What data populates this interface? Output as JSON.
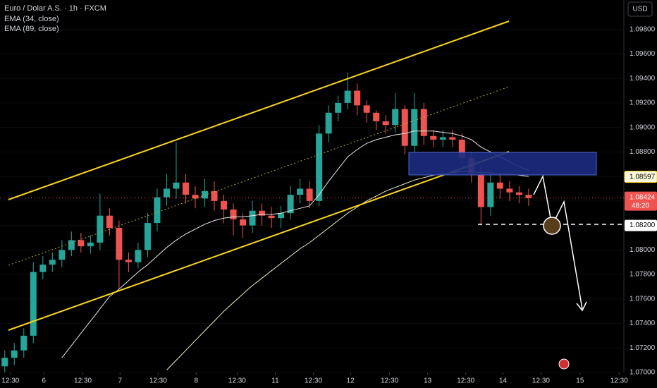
{
  "chart_data": {
    "type": "candlestick",
    "title": "Euro / Dolar A.S. · 1h · FXCM",
    "currency": "USD",
    "up_color": "#26a69a",
    "down_color": "#ef5350",
    "open": [
      1.0705,
      1.0712,
      1.0718,
      1.073,
      1.0782,
      1.0788,
      1.0792,
      1.08,
      1.0808,
      1.0803,
      1.0806,
      1.0828,
      1.0818,
      1.0792,
      1.079,
      1.08,
      1.0822,
      1.0843,
      1.085,
      1.0855,
      1.0845,
      1.0842,
      1.0848,
      1.084,
      1.0833,
      1.0825,
      1.082,
      1.0832,
      1.0828,
      1.0826,
      1.083,
      1.0845,
      1.085,
      1.084,
      1.0895,
      1.0912,
      1.092,
      1.093,
      1.0918,
      1.0912,
      1.0905,
      1.0902,
      1.0915,
      1.0885,
      1.0915,
      1.0893,
      1.089,
      1.0892,
      1.089,
      1.0875,
      1.0862,
      1.0835,
      1.0855,
      1.085,
      1.0847,
      1.0845
    ],
    "high": [
      1.0718,
      1.0724,
      1.0736,
      1.079,
      1.0795,
      1.0798,
      1.0808,
      1.0815,
      1.0814,
      1.0812,
      1.0846,
      1.0834,
      1.0824,
      1.0798,
      1.0806,
      1.083,
      1.085,
      1.0862,
      1.0888,
      1.0862,
      1.0852,
      1.0858,
      1.0856,
      1.0845,
      1.0838,
      1.083,
      1.084,
      1.0838,
      1.0835,
      1.0836,
      1.0852,
      1.0858,
      1.0856,
      1.0902,
      1.0918,
      1.0926,
      1.0945,
      1.0936,
      1.0922,
      1.0914,
      1.091,
      1.0928,
      1.0918,
      1.0928,
      1.092,
      1.0898,
      1.0898,
      1.0898,
      1.0895,
      1.088,
      1.0868,
      1.0864,
      1.0862,
      1.0856,
      1.0852,
      1.085
    ],
    "low": [
      1.07,
      1.0706,
      1.0712,
      1.0724,
      1.0776,
      1.0782,
      1.0786,
      1.0795,
      1.0798,
      1.0797,
      1.08,
      1.0812,
      1.0768,
      1.0782,
      1.0785,
      1.0794,
      1.0815,
      1.0836,
      1.0842,
      1.0838,
      1.0834,
      1.0835,
      1.0832,
      1.0822,
      1.0812,
      1.081,
      1.0814,
      1.082,
      1.0818,
      1.0818,
      1.0825,
      1.0838,
      1.0834,
      1.0836,
      1.0888,
      1.0905,
      1.0915,
      1.091,
      1.0904,
      1.0898,
      1.0895,
      1.0896,
      1.0878,
      1.088,
      1.0886,
      1.0884,
      1.0884,
      1.0884,
      1.0868,
      1.0855,
      1.082,
      1.0828,
      1.0842,
      1.084,
      1.0838,
      1.0836
    ],
    "close": [
      1.0712,
      1.0718,
      1.073,
      1.0782,
      1.0788,
      1.0792,
      1.08,
      1.0808,
      1.0803,
      1.0806,
      1.0828,
      1.0818,
      1.0792,
      1.079,
      1.08,
      1.0822,
      1.0843,
      1.085,
      1.0855,
      1.0845,
      1.0842,
      1.0848,
      1.084,
      1.0833,
      1.0825,
      1.082,
      1.0832,
      1.0828,
      1.0826,
      1.083,
      1.0845,
      1.085,
      1.084,
      1.0895,
      1.0912,
      1.092,
      1.093,
      1.0918,
      1.0912,
      1.0905,
      1.0902,
      1.0915,
      1.0885,
      1.0915,
      1.0893,
      1.089,
      1.0892,
      1.089,
      1.0875,
      1.0862,
      1.0835,
      1.0855,
      1.085,
      1.0847,
      1.0845,
      1.08424
    ],
    "series": [
      {
        "name": "EMA (34, close)",
        "color": "#e8e8e8",
        "values": [
          null,
          null,
          null,
          null,
          null,
          null,
          1.0712,
          1.0722,
          1.0732,
          1.0742,
          1.0752,
          1.0762,
          1.0768,
          1.0775,
          1.0782,
          1.0788,
          1.0795,
          1.0802,
          1.0808,
          1.0813,
          1.0817,
          1.0821,
          1.0824,
          1.0826,
          1.0827,
          1.0827,
          1.0828,
          1.0829,
          1.0829,
          1.083,
          1.0832,
          1.0834,
          1.0836,
          1.0845,
          1.0856,
          1.0866,
          1.0876,
          1.0882,
          1.0887,
          1.089,
          1.0892,
          1.0894,
          1.0895,
          1.0897,
          1.0897,
          1.0897,
          1.0896,
          1.0895,
          1.0893,
          1.089,
          1.0884,
          1.088,
          1.0876,
          1.0872,
          1.0868,
          1.0865
        ]
      },
      {
        "name": "EMA (89, close)",
        "color": "#f3eccb",
        "values": [
          null,
          null,
          null,
          null,
          null,
          null,
          null,
          null,
          null,
          null,
          null,
          null,
          null,
          null,
          null,
          null,
          null,
          1.0702,
          1.071,
          1.0718,
          1.0726,
          1.0734,
          1.0742,
          1.075,
          1.0757,
          1.0764,
          1.0771,
          1.0777,
          1.0783,
          1.0789,
          1.0795,
          1.0801,
          1.0806,
          1.0812,
          1.0818,
          1.0824,
          1.083,
          1.0835,
          1.084,
          1.0844,
          1.0848,
          1.0851,
          1.0854,
          1.0857,
          1.0859,
          1.0861,
          1.0862,
          1.0863,
          1.0864,
          1.0864,
          1.0863,
          1.0863,
          1.0862,
          1.0862,
          1.0861,
          1.086
        ]
      }
    ],
    "ylim": [
      1.07,
      1.1004
    ],
    "yticks": [
      {
        "value": 1.07,
        "label": "1.07000"
      },
      {
        "value": 1.072,
        "label": "1.07200"
      },
      {
        "value": 1.074,
        "label": "1.07400"
      },
      {
        "value": 1.076,
        "label": "1.07600"
      },
      {
        "value": 1.078,
        "label": "1.07800"
      },
      {
        "value": 1.08,
        "label": "1.08000"
      },
      {
        "value": 1.082,
        "label": "1.08200"
      },
      {
        "value": 1.084,
        "label": "1.08400"
      },
      {
        "value": 1.086,
        "label": "1.08600"
      },
      {
        "value": 1.088,
        "label": "1.08800"
      },
      {
        "value": 1.09,
        "label": "1.09000"
      },
      {
        "value": 1.092,
        "label": "1.09200"
      },
      {
        "value": 1.094,
        "label": "1.09400"
      },
      {
        "value": 1.096,
        "label": "1.09600"
      },
      {
        "value": 1.098,
        "label": "1.09800"
      }
    ],
    "xlim": [
      0,
      65.5
    ],
    "xticks": [
      {
        "value": 1.1,
        "label": "12:30"
      },
      {
        "value": 4.6,
        "label": "6"
      },
      {
        "value": 8.7,
        "label": "12:30"
      },
      {
        "value": 12.6,
        "label": "7"
      },
      {
        "value": 16.6,
        "label": "12:30"
      },
      {
        "value": 20.6,
        "label": "8"
      },
      {
        "value": 24.9,
        "label": "12:30"
      },
      {
        "value": 28.9,
        "label": "11"
      },
      {
        "value": 32.9,
        "label": "12:30"
      },
      {
        "value": 36.8,
        "label": "12"
      },
      {
        "value": 40.9,
        "label": "12:30"
      },
      {
        "value": 44.9,
        "label": "13"
      },
      {
        "value": 48.9,
        "label": "12:30"
      },
      {
        "value": 52.8,
        "label": "14"
      },
      {
        "value": 56.8,
        "label": "12:30"
      },
      {
        "value": 60.9,
        "label": "15"
      },
      {
        "value": 65.0,
        "label": "12:30"
      }
    ],
    "markers": {
      "zone_top": 1.08597,
      "last_price": 1.08424,
      "countdown": "48:20",
      "target": {
        "value": 1.082,
        "label": "1.08200"
      }
    }
  }
}
